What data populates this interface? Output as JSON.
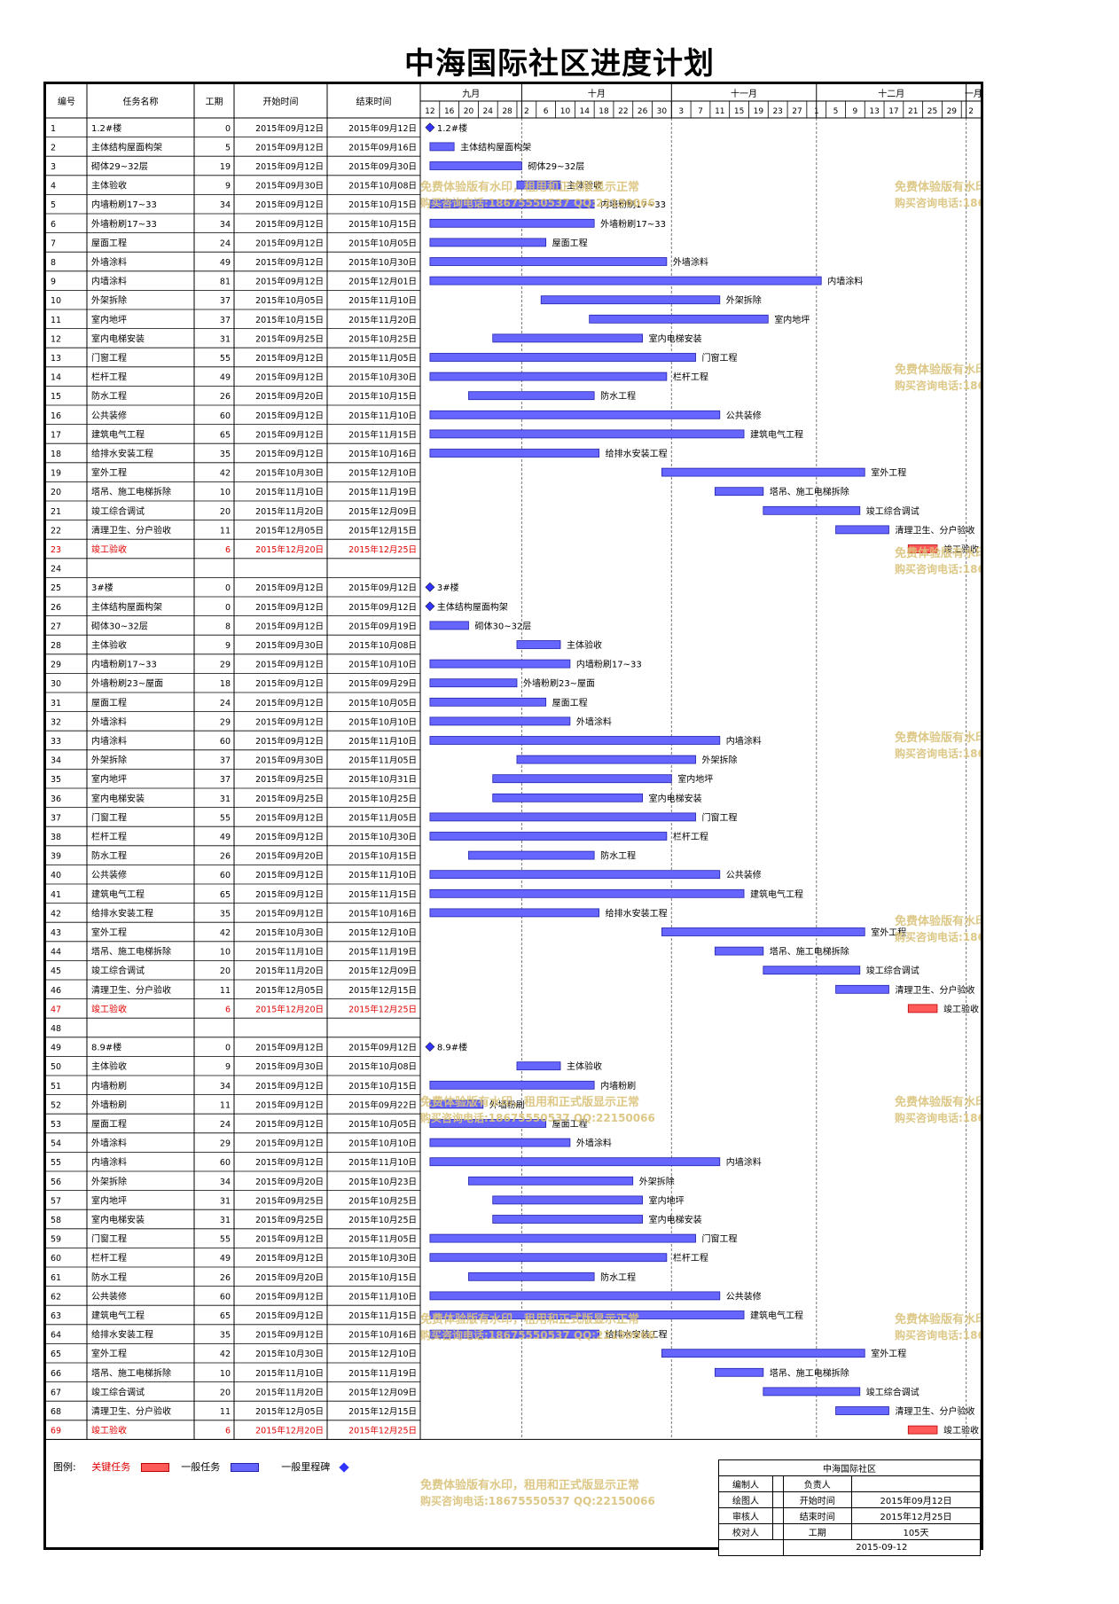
{
  "title": "中海国际社区进度计划",
  "chart_data": {
    "type": "gantt",
    "title": "中海国际社区进度计划",
    "columns": [
      "编号",
      "任务名称",
      "工期",
      "开始时间",
      "结束时间"
    ],
    "timeline": {
      "start": "2015-09-10",
      "months": [
        {
          "label": "九月",
          "start": "2015-09-10",
          "end": "2015-10-01"
        },
        {
          "label": "十月",
          "start": "2015-10-01",
          "end": "2015-11-01"
        },
        {
          "label": "十一月",
          "start": "2015-11-01",
          "end": "2015-12-01"
        },
        {
          "label": "十二月",
          "start": "2015-12-01",
          "end": "2016-01-01"
        },
        {
          "label": "一月",
          "start": "2016-01-01",
          "end": "2016-01-04"
        }
      ],
      "ticks": [
        "12",
        "16",
        "20",
        "24",
        "28",
        "2",
        "6",
        "10",
        "14",
        "18",
        "22",
        "26",
        "30",
        "3",
        "7",
        "11",
        "15",
        "19",
        "23",
        "27",
        "1",
        "5",
        "9",
        "13",
        "17",
        "21",
        "25",
        "29",
        "2"
      ]
    },
    "rows": [
      {
        "id": "1",
        "name": "1.2#楼",
        "dur": "0",
        "start": "2015年09月12日",
        "end": "2015年09月12日",
        "type": "milestone"
      },
      {
        "id": "2",
        "name": "主体结构屋面构架",
        "dur": "5",
        "start": "2015年09月12日",
        "end": "2015年09月16日",
        "type": "normal"
      },
      {
        "id": "3",
        "name": "砌体29~32层",
        "dur": "19",
        "start": "2015年09月12日",
        "end": "2015年09月30日",
        "type": "normal"
      },
      {
        "id": "4",
        "name": "主体验收",
        "dur": "9",
        "start": "2015年09月30日",
        "end": "2015年10月08日",
        "type": "normal"
      },
      {
        "id": "5",
        "name": "内墙粉刷17~33",
        "dur": "34",
        "start": "2015年09月12日",
        "end": "2015年10月15日",
        "type": "normal"
      },
      {
        "id": "6",
        "name": "外墙粉刷17~33",
        "dur": "34",
        "start": "2015年09月12日",
        "end": "2015年10月15日",
        "type": "normal"
      },
      {
        "id": "7",
        "name": "屋面工程",
        "dur": "24",
        "start": "2015年09月12日",
        "end": "2015年10月05日",
        "type": "normal"
      },
      {
        "id": "8",
        "name": "外墙涂料",
        "dur": "49",
        "start": "2015年09月12日",
        "end": "2015年10月30日",
        "type": "normal"
      },
      {
        "id": "9",
        "name": "内墙涂料",
        "dur": "81",
        "start": "2015年09月12日",
        "end": "2015年12月01日",
        "type": "normal"
      },
      {
        "id": "10",
        "name": "外架拆除",
        "dur": "37",
        "start": "2015年10月05日",
        "end": "2015年11月10日",
        "type": "normal"
      },
      {
        "id": "11",
        "name": "室内地坪",
        "dur": "37",
        "start": "2015年10月15日",
        "end": "2015年11月20日",
        "type": "normal"
      },
      {
        "id": "12",
        "name": "室内电梯安装",
        "dur": "31",
        "start": "2015年09月25日",
        "end": "2015年10月25日",
        "type": "normal"
      },
      {
        "id": "13",
        "name": "门窗工程",
        "dur": "55",
        "start": "2015年09月12日",
        "end": "2015年11月05日",
        "type": "normal"
      },
      {
        "id": "14",
        "name": "栏杆工程",
        "dur": "49",
        "start": "2015年09月12日",
        "end": "2015年10月30日",
        "type": "normal"
      },
      {
        "id": "15",
        "name": "防水工程",
        "dur": "26",
        "start": "2015年09月20日",
        "end": "2015年10月15日",
        "type": "normal"
      },
      {
        "id": "16",
        "name": "公共装修",
        "dur": "60",
        "start": "2015年09月12日",
        "end": "2015年11月10日",
        "type": "normal"
      },
      {
        "id": "17",
        "name": "建筑电气工程",
        "dur": "65",
        "start": "2015年09月12日",
        "end": "2015年11月15日",
        "type": "normal"
      },
      {
        "id": "18",
        "name": "给排水安装工程",
        "dur": "35",
        "start": "2015年09月12日",
        "end": "2015年10月16日",
        "type": "normal"
      },
      {
        "id": "19",
        "name": "室外工程",
        "dur": "42",
        "start": "2015年10月30日",
        "end": "2015年12月10日",
        "type": "normal"
      },
      {
        "id": "20",
        "name": "塔吊、施工电梯拆除",
        "dur": "10",
        "start": "2015年11月10日",
        "end": "2015年11月19日",
        "type": "normal"
      },
      {
        "id": "21",
        "name": "竣工综合调试",
        "dur": "20",
        "start": "2015年11月20日",
        "end": "2015年12月09日",
        "type": "normal"
      },
      {
        "id": "22",
        "name": "清理卫生、分户验收",
        "dur": "11",
        "start": "2015年12月05日",
        "end": "2015年12月15日",
        "type": "normal"
      },
      {
        "id": "23",
        "name": "竣工验收",
        "dur": "6",
        "start": "2015年12月20日",
        "end": "2015年12月25日",
        "type": "critical"
      },
      {
        "id": "24",
        "name": "",
        "dur": "",
        "start": "",
        "end": "",
        "type": "empty"
      },
      {
        "id": "25",
        "name": "3#楼",
        "dur": "0",
        "start": "2015年09月12日",
        "end": "2015年09月12日",
        "type": "milestone"
      },
      {
        "id": "26",
        "name": "主体结构屋面构架",
        "dur": "0",
        "start": "2015年09月12日",
        "end": "2015年09月12日",
        "type": "milestone"
      },
      {
        "id": "27",
        "name": "砌体30~32层",
        "dur": "8",
        "start": "2015年09月12日",
        "end": "2015年09月19日",
        "type": "normal"
      },
      {
        "id": "28",
        "name": "主体验收",
        "dur": "9",
        "start": "2015年09月30日",
        "end": "2015年10月08日",
        "type": "normal"
      },
      {
        "id": "29",
        "name": "内墙粉刷17~33",
        "dur": "29",
        "start": "2015年09月12日",
        "end": "2015年10月10日",
        "type": "normal"
      },
      {
        "id": "30",
        "name": "外墙粉刷23~屋面",
        "dur": "18",
        "start": "2015年09月12日",
        "end": "2015年09月29日",
        "type": "normal"
      },
      {
        "id": "31",
        "name": "屋面工程",
        "dur": "24",
        "start": "2015年09月12日",
        "end": "2015年10月05日",
        "type": "normal"
      },
      {
        "id": "32",
        "name": "外墙涂料",
        "dur": "29",
        "start": "2015年09月12日",
        "end": "2015年10月10日",
        "type": "normal"
      },
      {
        "id": "33",
        "name": "内墙涂料",
        "dur": "60",
        "start": "2015年09月12日",
        "end": "2015年11月10日",
        "type": "normal"
      },
      {
        "id": "34",
        "name": "外架拆除",
        "dur": "37",
        "start": "2015年09月30日",
        "end": "2015年11月05日",
        "type": "normal"
      },
      {
        "id": "35",
        "name": "室内地坪",
        "dur": "37",
        "start": "2015年09月25日",
        "end": "2015年10月31日",
        "type": "normal"
      },
      {
        "id": "36",
        "name": "室内电梯安装",
        "dur": "31",
        "start": "2015年09月25日",
        "end": "2015年10月25日",
        "type": "normal"
      },
      {
        "id": "37",
        "name": "门窗工程",
        "dur": "55",
        "start": "2015年09月12日",
        "end": "2015年11月05日",
        "type": "normal"
      },
      {
        "id": "38",
        "name": "栏杆工程",
        "dur": "49",
        "start": "2015年09月12日",
        "end": "2015年10月30日",
        "type": "normal"
      },
      {
        "id": "39",
        "name": "防水工程",
        "dur": "26",
        "start": "2015年09月20日",
        "end": "2015年10月15日",
        "type": "normal"
      },
      {
        "id": "40",
        "name": "公共装修",
        "dur": "60",
        "start": "2015年09月12日",
        "end": "2015年11月10日",
        "type": "normal"
      },
      {
        "id": "41",
        "name": "建筑电气工程",
        "dur": "65",
        "start": "2015年09月12日",
        "end": "2015年11月15日",
        "type": "normal"
      },
      {
        "id": "42",
        "name": "给排水安装工程",
        "dur": "35",
        "start": "2015年09月12日",
        "end": "2015年10月16日",
        "type": "normal"
      },
      {
        "id": "43",
        "name": "室外工程",
        "dur": "42",
        "start": "2015年10月30日",
        "end": "2015年12月10日",
        "type": "normal"
      },
      {
        "id": "44",
        "name": "塔吊、施工电梯拆除",
        "dur": "10",
        "start": "2015年11月10日",
        "end": "2015年11月19日",
        "type": "normal"
      },
      {
        "id": "45",
        "name": "竣工综合调试",
        "dur": "20",
        "start": "2015年11月20日",
        "end": "2015年12月09日",
        "type": "normal"
      },
      {
        "id": "46",
        "name": "清理卫生、分户验收",
        "dur": "11",
        "start": "2015年12月05日",
        "end": "2015年12月15日",
        "type": "normal"
      },
      {
        "id": "47",
        "name": "竣工验收",
        "dur": "6",
        "start": "2015年12月20日",
        "end": "2015年12月25日",
        "type": "critical"
      },
      {
        "id": "48",
        "name": "",
        "dur": "",
        "start": "",
        "end": "",
        "type": "empty"
      },
      {
        "id": "49",
        "name": "8.9#楼",
        "dur": "0",
        "start": "2015年09月12日",
        "end": "2015年09月12日",
        "type": "milestone"
      },
      {
        "id": "50",
        "name": "主体验收",
        "dur": "9",
        "start": "2015年09月30日",
        "end": "2015年10月08日",
        "type": "normal"
      },
      {
        "id": "51",
        "name": "内墙粉刷",
        "dur": "34",
        "start": "2015年09月12日",
        "end": "2015年10月15日",
        "type": "normal"
      },
      {
        "id": "52",
        "name": "外墙粉刷",
        "dur": "11",
        "start": "2015年09月12日",
        "end": "2015年09月22日",
        "type": "normal"
      },
      {
        "id": "53",
        "name": "屋面工程",
        "dur": "24",
        "start": "2015年09月12日",
        "end": "2015年10月05日",
        "type": "normal"
      },
      {
        "id": "54",
        "name": "外墙涂料",
        "dur": "29",
        "start": "2015年09月12日",
        "end": "2015年10月10日",
        "type": "normal"
      },
      {
        "id": "55",
        "name": "内墙涂料",
        "dur": "60",
        "start": "2015年09月12日",
        "end": "2015年11月10日",
        "type": "normal"
      },
      {
        "id": "56",
        "name": "外架拆除",
        "dur": "34",
        "start": "2015年09月20日",
        "end": "2015年10月23日",
        "type": "normal"
      },
      {
        "id": "57",
        "name": "室内地坪",
        "dur": "31",
        "start": "2015年09月25日",
        "end": "2015年10月25日",
        "type": "normal"
      },
      {
        "id": "58",
        "name": "室内电梯安装",
        "dur": "31",
        "start": "2015年09月25日",
        "end": "2015年10月25日",
        "type": "normal"
      },
      {
        "id": "59",
        "name": "门窗工程",
        "dur": "55",
        "start": "2015年09月12日",
        "end": "2015年11月05日",
        "type": "normal"
      },
      {
        "id": "60",
        "name": "栏杆工程",
        "dur": "49",
        "start": "2015年09月12日",
        "end": "2015年10月30日",
        "type": "normal"
      },
      {
        "id": "61",
        "name": "防水工程",
        "dur": "26",
        "start": "2015年09月20日",
        "end": "2015年10月15日",
        "type": "normal"
      },
      {
        "id": "62",
        "name": "公共装修",
        "dur": "60",
        "start": "2015年09月12日",
        "end": "2015年11月10日",
        "type": "normal"
      },
      {
        "id": "63",
        "name": "建筑电气工程",
        "dur": "65",
        "start": "2015年09月12日",
        "end": "2015年11月15日",
        "type": "normal"
      },
      {
        "id": "64",
        "name": "给排水安装工程",
        "dur": "35",
        "start": "2015年09月12日",
        "end": "2015年10月16日",
        "type": "normal"
      },
      {
        "id": "65",
        "name": "室外工程",
        "dur": "42",
        "start": "2015年10月30日",
        "end": "2015年12月10日",
        "type": "normal"
      },
      {
        "id": "66",
        "name": "塔吊、施工电梯拆除",
        "dur": "10",
        "start": "2015年11月10日",
        "end": "2015年11月19日",
        "type": "normal"
      },
      {
        "id": "67",
        "name": "竣工综合调试",
        "dur": "20",
        "start": "2015年11月20日",
        "end": "2015年12月09日",
        "type": "normal"
      },
      {
        "id": "68",
        "name": "清理卫生、分户验收",
        "dur": "11",
        "start": "2015年12月05日",
        "end": "2015年12月15日",
        "type": "normal"
      },
      {
        "id": "69",
        "name": "竣工验收",
        "dur": "6",
        "start": "2015年12月20日",
        "end": "2015年12月25日",
        "type": "critical"
      }
    ]
  },
  "watermark": {
    "line1": "免费体验版有水印，租用和正式版显示正常",
    "line2": "购买咨询电话:18675550537 QQ:22150066"
  },
  "legend": {
    "label": "图例:",
    "critical": "关键任务",
    "normal": "一般任务",
    "milestone": "一般里程碑"
  },
  "signoff": {
    "project": "中海国际社区",
    "editor_label": "编制人",
    "lead_label": "负责人",
    "drawer_label": "绘图人",
    "start_label": "开始时间",
    "start_value": "2015年09月12日",
    "reviewer_label": "审核人",
    "end_label": "结束时间",
    "end_value": "2015年12月25日",
    "checker_label": "校对人",
    "duration_label": "工期",
    "duration_value": "105天",
    "date": "2015-09-12"
  },
  "colors": {
    "normal_bar": "#6666ff",
    "critical_bar": "#ff5a5a",
    "critical_text": "#e00000",
    "milestone": "#3333ff",
    "watermark": "#d9c27a"
  }
}
